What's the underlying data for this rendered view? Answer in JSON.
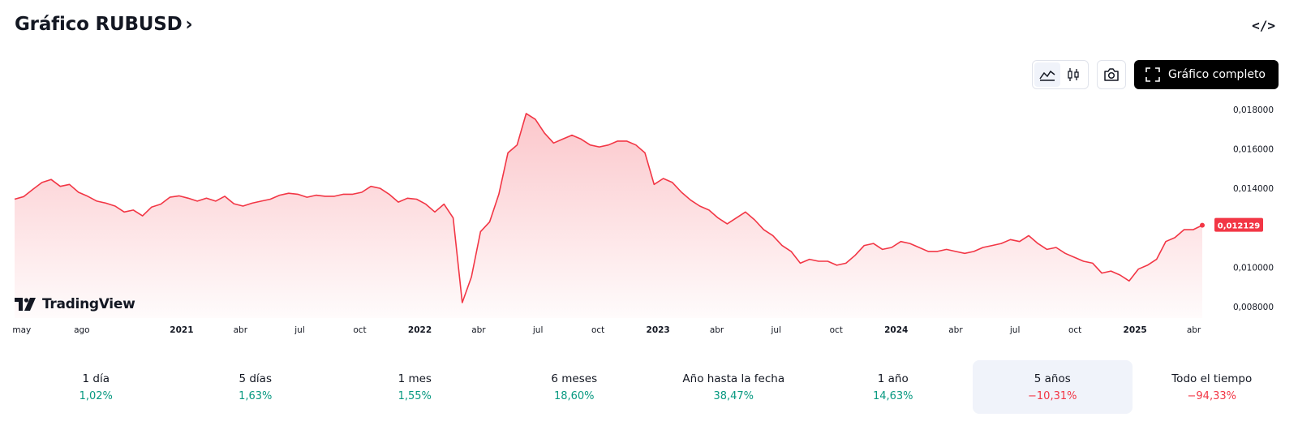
{
  "header": {
    "title": "Gráfico RUBUSD",
    "chevron": "›"
  },
  "embed_label": "</>",
  "toolbar": {
    "line_icon": "line-chart-icon",
    "candle_icon": "candlestick-icon",
    "camera_icon": "camera-icon",
    "fullscreen_label": "Gráfico completo"
  },
  "logo_text": "TradingView",
  "periods": [
    {
      "label": "1 día",
      "value": "1,02%",
      "trend": "pos"
    },
    {
      "label": "5 días",
      "value": "1,63%",
      "trend": "pos"
    },
    {
      "label": "1 mes",
      "value": "1,55%",
      "trend": "pos"
    },
    {
      "label": "6 meses",
      "value": "18,60%",
      "trend": "pos"
    },
    {
      "label": "Año hasta la fecha",
      "value": "38,47%",
      "trend": "pos"
    },
    {
      "label": "1 año",
      "value": "14,63%",
      "trend": "pos"
    },
    {
      "label": "5 años",
      "value": "−10,31%",
      "trend": "neg",
      "active": true
    },
    {
      "label": "Todo el tiempo",
      "value": "−94,33%",
      "trend": "neg"
    }
  ],
  "colors": {
    "line": "#f23645",
    "fill": "#f23645",
    "positive": "#089981",
    "negative": "#f23645"
  },
  "chart_data": {
    "type": "area",
    "series_name": "RUBUSD",
    "last_value": "0,012129",
    "ylim": [
      0.0075,
      0.0187
    ],
    "y_ticks": [
      {
        "value": 0.018,
        "label": "0,018000"
      },
      {
        "value": 0.016,
        "label": "0,016000"
      },
      {
        "value": 0.014,
        "label": "0,014000"
      },
      {
        "value": 0.01,
        "label": "0,010000"
      },
      {
        "value": 0.008,
        "label": "0,008000"
      }
    ],
    "x_ticks": [
      {
        "date": "2020-05",
        "label": "may",
        "bold": false
      },
      {
        "date": "2020-08",
        "label": "ago",
        "bold": false
      },
      {
        "date": "2021-01",
        "label": "2021",
        "bold": true
      },
      {
        "date": "2021-04",
        "label": "abr",
        "bold": false
      },
      {
        "date": "2021-07",
        "label": "jul",
        "bold": false
      },
      {
        "date": "2021-10",
        "label": "oct",
        "bold": false
      },
      {
        "date": "2022-01",
        "label": "2022",
        "bold": true
      },
      {
        "date": "2022-04",
        "label": "abr",
        "bold": false
      },
      {
        "date": "2022-07",
        "label": "jul",
        "bold": false
      },
      {
        "date": "2022-10",
        "label": "oct",
        "bold": false
      },
      {
        "date": "2023-01",
        "label": "2023",
        "bold": true
      },
      {
        "date": "2023-04",
        "label": "abr",
        "bold": false
      },
      {
        "date": "2023-07",
        "label": "jul",
        "bold": false
      },
      {
        "date": "2023-10",
        "label": "oct",
        "bold": false
      },
      {
        "date": "2024-01",
        "label": "2024",
        "bold": true
      },
      {
        "date": "2024-04",
        "label": "abr",
        "bold": false
      },
      {
        "date": "2024-07",
        "label": "jul",
        "bold": false
      },
      {
        "date": "2024-10",
        "label": "oct",
        "bold": false
      },
      {
        "date": "2025-01",
        "label": "2025",
        "bold": true
      },
      {
        "date": "2025-04",
        "label": "abr",
        "bold": false
      }
    ],
    "points": [
      [
        "2020-04-20",
        0.01345
      ],
      [
        "2020-05-04",
        0.01358
      ],
      [
        "2020-05-18",
        0.01395
      ],
      [
        "2020-06-01",
        0.0143
      ],
      [
        "2020-06-15",
        0.01445
      ],
      [
        "2020-06-29",
        0.0141
      ],
      [
        "2020-07-13",
        0.0142
      ],
      [
        "2020-07-27",
        0.0138
      ],
      [
        "2020-08-10",
        0.0136
      ],
      [
        "2020-08-24",
        0.01335
      ],
      [
        "2020-09-07",
        0.01325
      ],
      [
        "2020-09-21",
        0.0131
      ],
      [
        "2020-10-05",
        0.0128
      ],
      [
        "2020-10-19",
        0.0129
      ],
      [
        "2020-11-02",
        0.0126
      ],
      [
        "2020-11-16",
        0.01305
      ],
      [
        "2020-11-30",
        0.0132
      ],
      [
        "2020-12-14",
        0.01355
      ],
      [
        "2020-12-28",
        0.01362
      ],
      [
        "2021-01-11",
        0.0135
      ],
      [
        "2021-01-25",
        0.01335
      ],
      [
        "2021-02-08",
        0.0135
      ],
      [
        "2021-02-22",
        0.01335
      ],
      [
        "2021-03-08",
        0.0136
      ],
      [
        "2021-03-22",
        0.01322
      ],
      [
        "2021-04-05",
        0.0131
      ],
      [
        "2021-04-19",
        0.01325
      ],
      [
        "2021-05-03",
        0.01335
      ],
      [
        "2021-05-17",
        0.01345
      ],
      [
        "2021-05-31",
        0.01365
      ],
      [
        "2021-06-14",
        0.01375
      ],
      [
        "2021-06-28",
        0.0137
      ],
      [
        "2021-07-12",
        0.01355
      ],
      [
        "2021-07-26",
        0.01365
      ],
      [
        "2021-08-09",
        0.0136
      ],
      [
        "2021-08-23",
        0.0136
      ],
      [
        "2021-09-06",
        0.0137
      ],
      [
        "2021-09-20",
        0.0137
      ],
      [
        "2021-10-04",
        0.0138
      ],
      [
        "2021-10-18",
        0.0141
      ],
      [
        "2021-11-01",
        0.014
      ],
      [
        "2021-11-15",
        0.0137
      ],
      [
        "2021-11-29",
        0.0133
      ],
      [
        "2021-12-13",
        0.0135
      ],
      [
        "2021-12-27",
        0.01345
      ],
      [
        "2022-01-10",
        0.0132
      ],
      [
        "2022-01-24",
        0.0128
      ],
      [
        "2022-02-07",
        0.0132
      ],
      [
        "2022-02-21",
        0.0125
      ],
      [
        "2022-03-07",
        0.0082
      ],
      [
        "2022-03-21",
        0.0095
      ],
      [
        "2022-04-04",
        0.0118
      ],
      [
        "2022-04-18",
        0.0123
      ],
      [
        "2022-05-02",
        0.0137
      ],
      [
        "2022-05-16",
        0.0158
      ],
      [
        "2022-05-30",
        0.0162
      ],
      [
        "2022-06-13",
        0.0178
      ],
      [
        "2022-06-27",
        0.0175
      ],
      [
        "2022-07-11",
        0.0168
      ],
      [
        "2022-07-25",
        0.0163
      ],
      [
        "2022-08-08",
        0.0165
      ],
      [
        "2022-08-22",
        0.0167
      ],
      [
        "2022-09-05",
        0.0165
      ],
      [
        "2022-09-19",
        0.0162
      ],
      [
        "2022-10-03",
        0.0161
      ],
      [
        "2022-10-17",
        0.0162
      ],
      [
        "2022-10-31",
        0.0164
      ],
      [
        "2022-11-14",
        0.0164
      ],
      [
        "2022-11-28",
        0.0162
      ],
      [
        "2022-12-12",
        0.0158
      ],
      [
        "2022-12-26",
        0.0142
      ],
      [
        "2023-01-09",
        0.0145
      ],
      [
        "2023-01-23",
        0.0143
      ],
      [
        "2023-02-06",
        0.0138
      ],
      [
        "2023-02-20",
        0.0134
      ],
      [
        "2023-03-06",
        0.0131
      ],
      [
        "2023-03-20",
        0.0129
      ],
      [
        "2023-04-03",
        0.0125
      ],
      [
        "2023-04-17",
        0.0122
      ],
      [
        "2023-05-01",
        0.0125
      ],
      [
        "2023-05-15",
        0.0128
      ],
      [
        "2023-05-29",
        0.0124
      ],
      [
        "2023-06-12",
        0.0119
      ],
      [
        "2023-06-26",
        0.0116
      ],
      [
        "2023-07-10",
        0.0111
      ],
      [
        "2023-07-24",
        0.0108
      ],
      [
        "2023-08-07",
        0.0102
      ],
      [
        "2023-08-21",
        0.0104
      ],
      [
        "2023-09-04",
        0.0103
      ],
      [
        "2023-09-18",
        0.0103
      ],
      [
        "2023-10-02",
        0.0101
      ],
      [
        "2023-10-16",
        0.0102
      ],
      [
        "2023-10-30",
        0.0106
      ],
      [
        "2023-11-13",
        0.0111
      ],
      [
        "2023-11-27",
        0.0112
      ],
      [
        "2023-12-11",
        0.0109
      ],
      [
        "2023-12-25",
        0.011
      ],
      [
        "2024-01-08",
        0.0113
      ],
      [
        "2024-01-22",
        0.0112
      ],
      [
        "2024-02-05",
        0.011
      ],
      [
        "2024-02-19",
        0.0108
      ],
      [
        "2024-03-04",
        0.0108
      ],
      [
        "2024-03-18",
        0.0109
      ],
      [
        "2024-04-01",
        0.0108
      ],
      [
        "2024-04-15",
        0.0107
      ],
      [
        "2024-04-29",
        0.0108
      ],
      [
        "2024-05-13",
        0.011
      ],
      [
        "2024-05-27",
        0.0111
      ],
      [
        "2024-06-10",
        0.0112
      ],
      [
        "2024-06-24",
        0.0114
      ],
      [
        "2024-07-08",
        0.0113
      ],
      [
        "2024-07-22",
        0.0116
      ],
      [
        "2024-08-05",
        0.0112
      ],
      [
        "2024-08-19",
        0.0109
      ],
      [
        "2024-09-02",
        0.011
      ],
      [
        "2024-09-16",
        0.0107
      ],
      [
        "2024-09-30",
        0.0105
      ],
      [
        "2024-10-14",
        0.0103
      ],
      [
        "2024-10-28",
        0.0102
      ],
      [
        "2024-11-11",
        0.0097
      ],
      [
        "2024-11-25",
        0.0098
      ],
      [
        "2024-12-09",
        0.0096
      ],
      [
        "2024-12-23",
        0.0093
      ],
      [
        "2025-01-06",
        0.0099
      ],
      [
        "2025-01-20",
        0.0101
      ],
      [
        "2025-02-03",
        0.0104
      ],
      [
        "2025-02-17",
        0.0113
      ],
      [
        "2025-03-03",
        0.0115
      ],
      [
        "2025-03-17",
        0.0119
      ],
      [
        "2025-03-31",
        0.0119
      ],
      [
        "2025-04-14",
        0.012129
      ]
    ],
    "x_range": [
      "2020-04-20",
      "2025-04-14"
    ],
    "grid": false,
    "legend": "none"
  }
}
